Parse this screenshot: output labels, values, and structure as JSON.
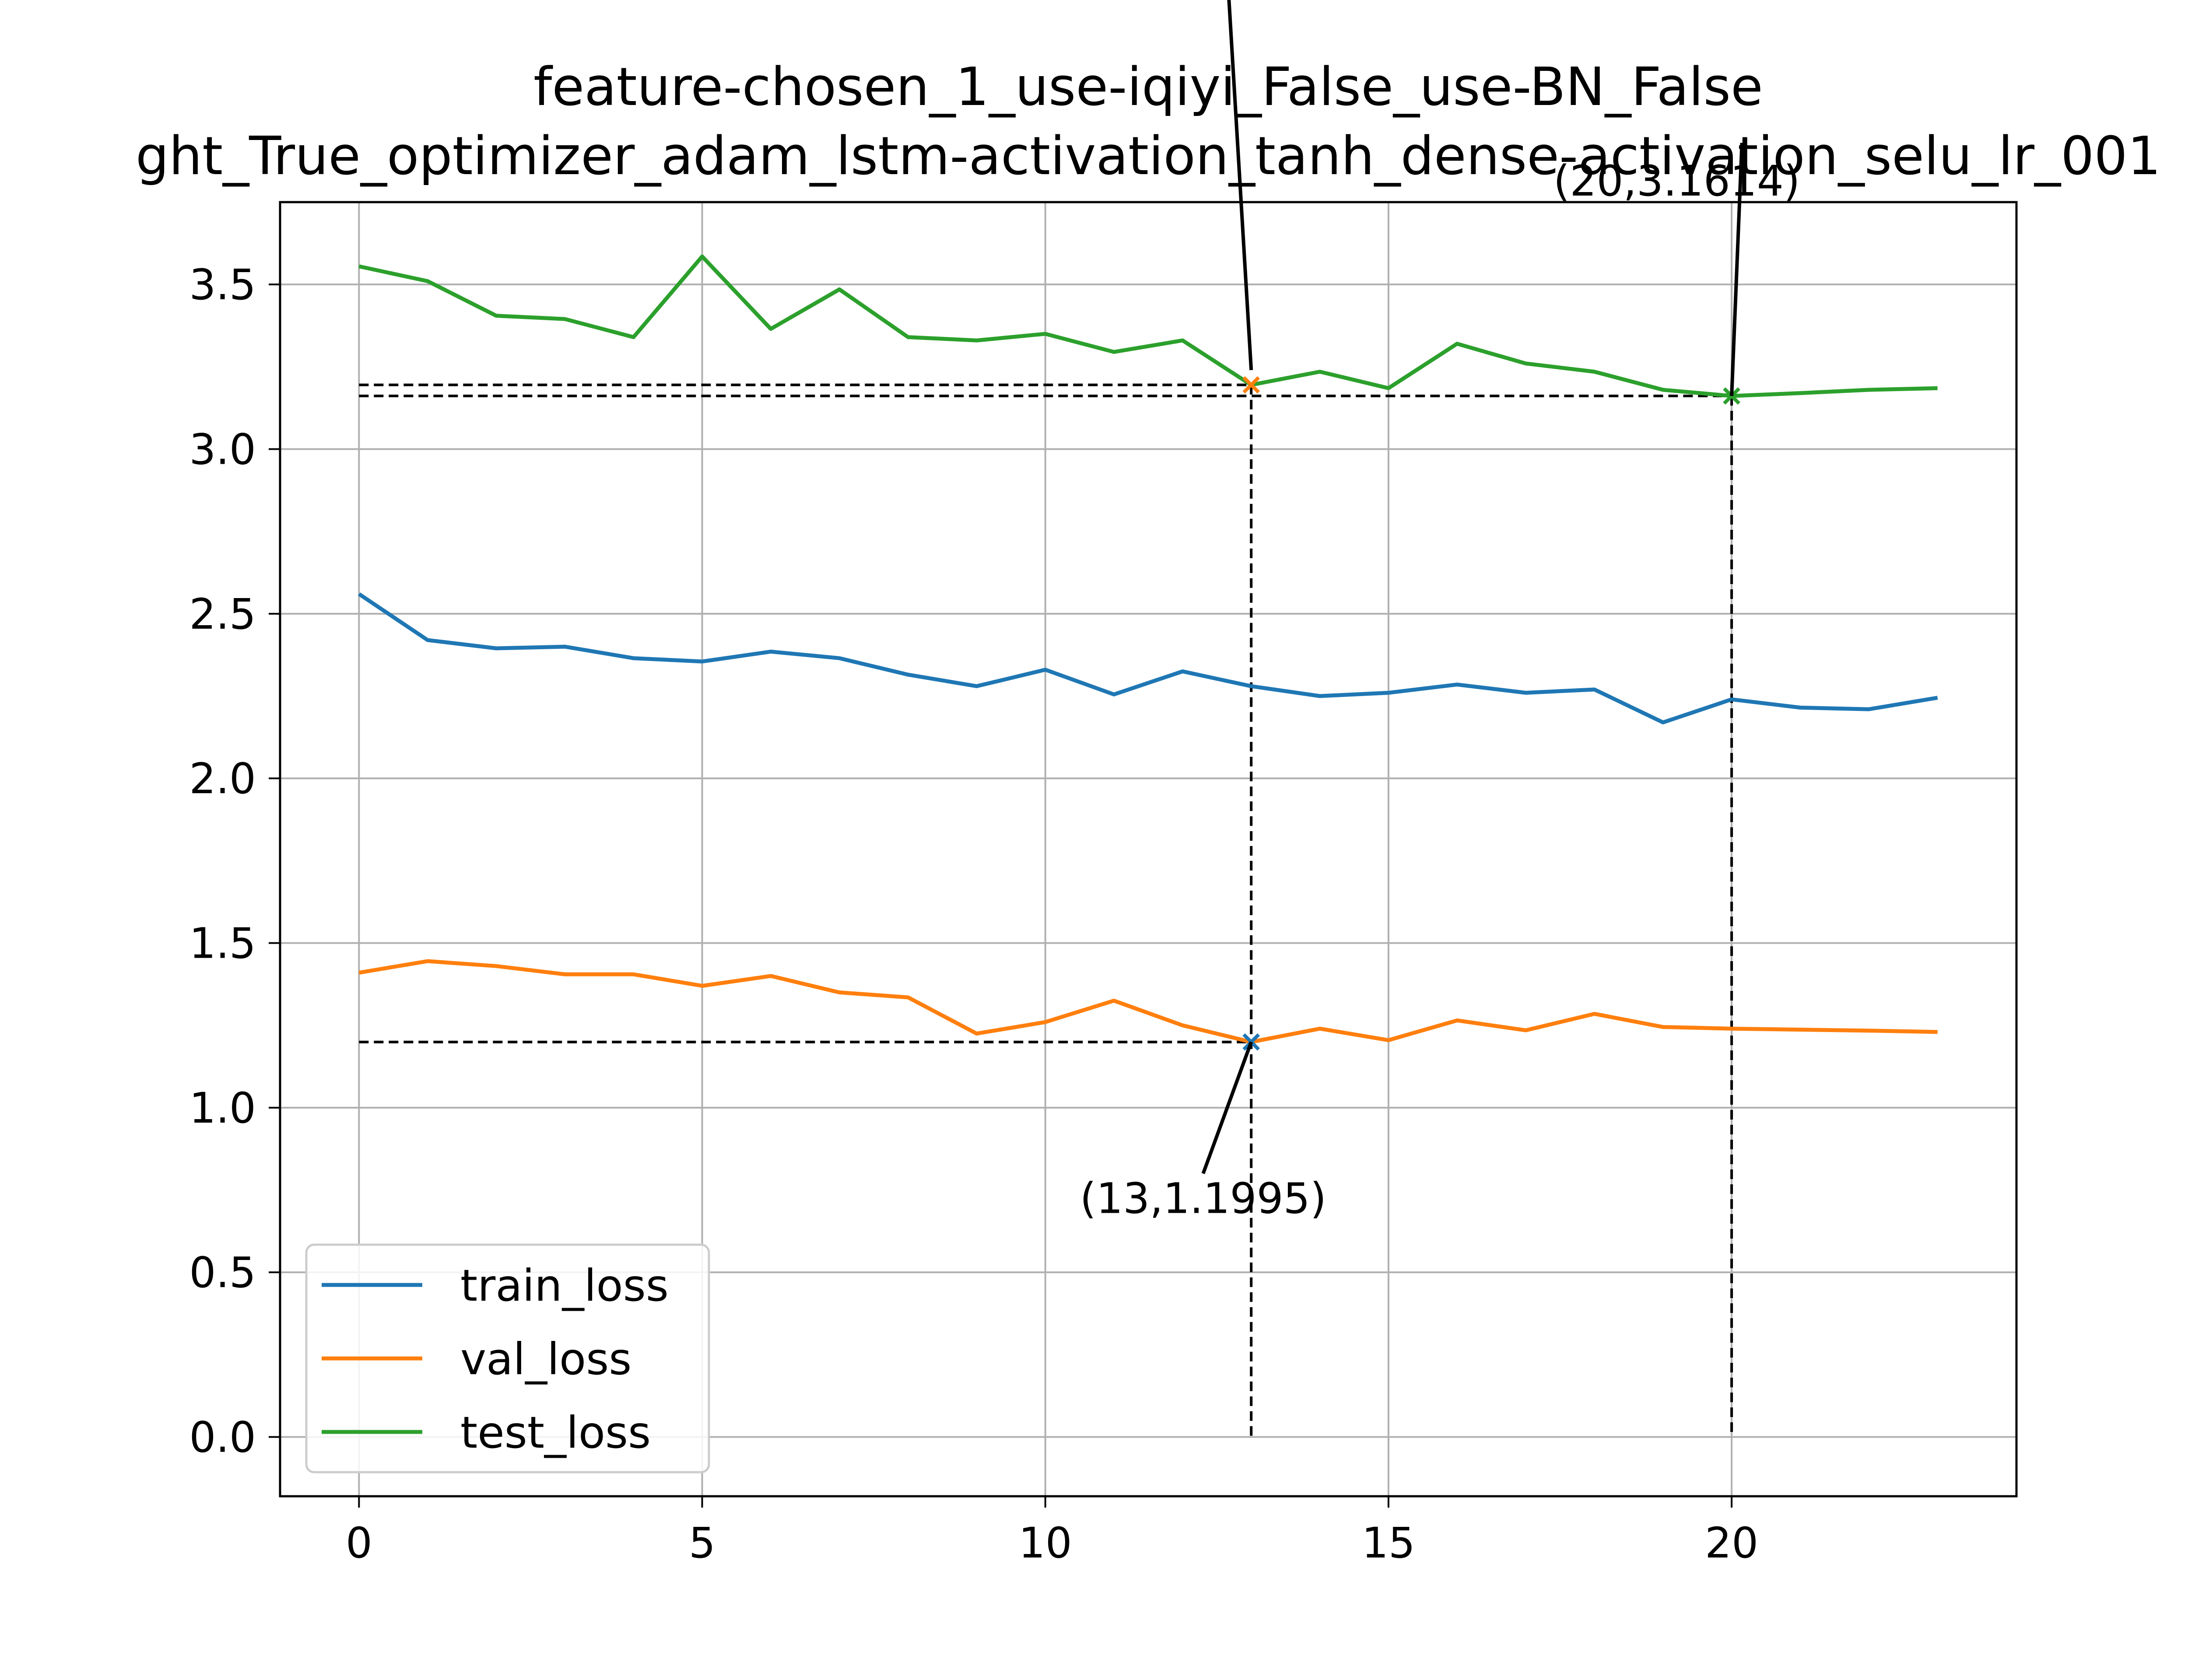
{
  "chart_data": {
    "type": "line",
    "title_lines": [
      "feature-chosen_1_use-iqiyi_False_use-BN_False",
      "ght_True_optimizer_adam_lstm-activation_tanh_dense-activation_selu_lr_001"
    ],
    "xlim": [
      -1.15,
      24.15
    ],
    "ylim": [
      -0.18,
      3.75
    ],
    "x_ticks": [
      0,
      5,
      10,
      15,
      20
    ],
    "x_tick_labels": [
      "0",
      "5",
      "10",
      "15",
      "20"
    ],
    "y_ticks": [
      0.0,
      0.5,
      1.0,
      1.5,
      2.0,
      2.5,
      3.0,
      3.5
    ],
    "y_tick_labels": [
      "0.0",
      "0.5",
      "1.0",
      "1.5",
      "2.0",
      "2.5",
      "3.0",
      "3.5"
    ],
    "grid": true,
    "legend_position": "lower-left",
    "x": [
      0,
      1,
      2,
      3,
      4,
      5,
      6,
      7,
      8,
      9,
      10,
      11,
      12,
      13,
      14,
      15,
      16,
      17,
      18,
      19,
      20,
      21,
      22,
      23
    ],
    "series": [
      {
        "name": "train_loss",
        "color": "#1f77b4",
        "values": [
          2.56,
          2.42,
          2.395,
          2.4,
          2.365,
          2.355,
          2.385,
          2.365,
          2.315,
          2.28,
          2.33,
          2.255,
          2.325,
          2.28,
          2.25,
          2.26,
          2.285,
          2.26,
          2.27,
          2.17,
          2.24,
          2.215,
          2.21,
          2.245
        ]
      },
      {
        "name": "val_loss",
        "color": "#ff7f0e",
        "values": [
          1.41,
          1.445,
          1.43,
          1.405,
          1.405,
          1.37,
          1.4,
          1.35,
          1.335,
          1.225,
          1.26,
          1.325,
          1.25,
          1.1995,
          1.24,
          1.205,
          1.265,
          1.235,
          1.285,
          1.245,
          1.24,
          1.237,
          1.234,
          1.23
        ]
      },
      {
        "name": "test_loss",
        "color": "#2ca02c",
        "values": [
          3.555,
          3.51,
          3.405,
          3.395,
          3.34,
          3.585,
          3.365,
          3.485,
          3.34,
          3.33,
          3.35,
          3.295,
          3.33,
          3.195,
          3.235,
          3.185,
          3.32,
          3.26,
          3.235,
          3.18,
          3.1614,
          3.17,
          3.18,
          3.185
        ]
      }
    ],
    "annotations": [
      {
        "label": "(13,1.1995)",
        "x": 13,
        "y": 1.1995,
        "marker_color": "#1f77b4",
        "text_x": 12.3,
        "text_y": 0.68,
        "arrow_from_x": 12.3,
        "arrow_from_y": 0.8
      },
      {
        "label": "(20,3.1614)",
        "x": 20,
        "y": 3.1614,
        "marker_color": "#2ca02c",
        "text_x": 19.2,
        "text_y": 3.77,
        "arrow_from_x": 20.15,
        "arrow_from_y": 3.93
      }
    ],
    "extra_marker": {
      "x": 13,
      "y": 3.195,
      "color": "#ff7f0e"
    },
    "extra_arrow": {
      "from_x": 12.55,
      "from_y": 4.8,
      "to_x": 13,
      "to_y": 3.24
    },
    "reference_lines": [
      {
        "y": 3.195,
        "x_to": 13,
        "vertical_from": 0
      },
      {
        "y": 3.1614,
        "x_to": 20,
        "vertical_from": 0
      },
      {
        "y": 1.1995,
        "x_to": 13,
        "vertical_from": null
      }
    ]
  }
}
